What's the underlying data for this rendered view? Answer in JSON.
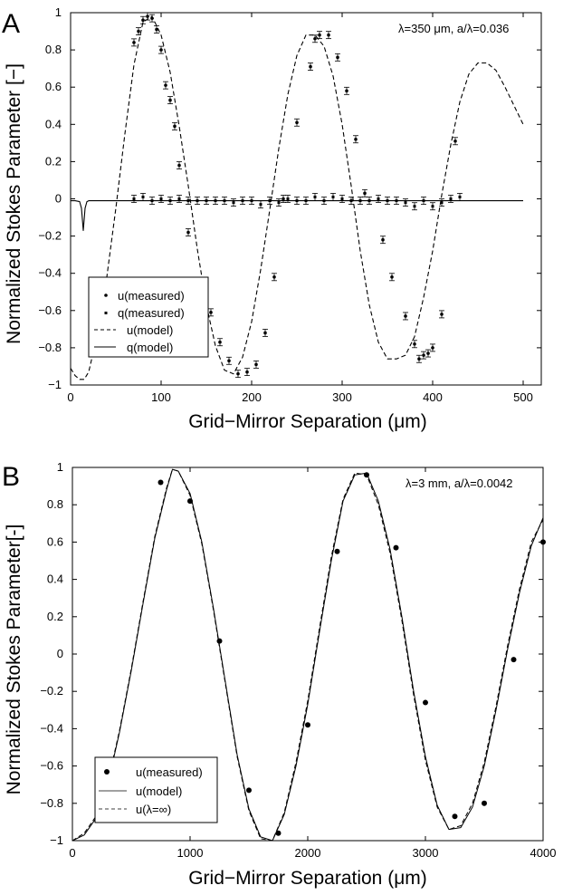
{
  "chart_data": [
    {
      "panel_label": "A",
      "type": "line",
      "title": "",
      "annotation": "λ=350 μm, a/λ=0.036",
      "xlabel": "Grid−Mirror Separation (μm)",
      "ylabel": "Normalized Stokes Parameter [−]",
      "xlim": [
        0,
        520
      ],
      "ylim": [
        -1,
        1
      ],
      "xticks": [
        0,
        100,
        200,
        300,
        400,
        500
      ],
      "xtick_labels": [
        "0",
        "100",
        "200",
        "300",
        "400",
        "500"
      ],
      "yticks": [
        -1,
        -0.8,
        -0.6,
        -0.4,
        -0.2,
        0,
        0.2,
        0.4,
        0.6,
        0.8,
        1
      ],
      "ytick_labels": [
        "−1",
        "−0.8",
        "−0.6",
        "−0.4",
        "−0.2",
        "0",
        "0.2",
        "0.4",
        "0.6",
        "0.8",
        "1"
      ],
      "legend": [
        {
          "label": "u(measured)",
          "marker": "dot"
        },
        {
          "label": "q(measured)",
          "marker": "square"
        },
        {
          "label": "u(model)",
          "marker": "dashed"
        },
        {
          "label": "q(model)",
          "marker": "solid"
        }
      ],
      "series": [
        {
          "name": "u(model)",
          "style": "dashed",
          "x": [
            0,
            5,
            10,
            15,
            20,
            30,
            40,
            50,
            60,
            70,
            80,
            90,
            100,
            110,
            120,
            130,
            140,
            150,
            160,
            170,
            180,
            190,
            200,
            210,
            220,
            230,
            240,
            250,
            260,
            270,
            280,
            290,
            300,
            310,
            320,
            330,
            340,
            350,
            360,
            370,
            380,
            390,
            400,
            410,
            420,
            430,
            440,
            450,
            460,
            470,
            480,
            490,
            500
          ],
          "y": [
            -0.91,
            -0.95,
            -0.97,
            -0.97,
            -0.93,
            -0.72,
            -0.42,
            -0.05,
            0.35,
            0.72,
            0.95,
            0.98,
            0.88,
            0.68,
            0.39,
            0.07,
            -0.27,
            -0.57,
            -0.79,
            -0.92,
            -0.94,
            -0.85,
            -0.66,
            -0.38,
            -0.06,
            0.27,
            0.56,
            0.77,
            0.88,
            0.88,
            0.82,
            0.66,
            0.4,
            0.07,
            -0.28,
            -0.57,
            -0.77,
            -0.86,
            -0.86,
            -0.84,
            -0.74,
            -0.53,
            -0.28,
            0.02,
            0.29,
            0.52,
            0.67,
            0.73,
            0.73,
            0.69,
            0.6,
            0.5,
            0.4
          ]
        },
        {
          "name": "q(model)",
          "style": "solid",
          "x": [
            0,
            5,
            10,
            12,
            14,
            16,
            18,
            20,
            30,
            60,
            100,
            150,
            200,
            250,
            300,
            350,
            400,
            450,
            500
          ],
          "y": [
            -0.01,
            -0.01,
            -0.015,
            -0.05,
            -0.17,
            -0.05,
            -0.015,
            -0.01,
            -0.01,
            -0.01,
            -0.01,
            -0.01,
            -0.01,
            -0.01,
            -0.01,
            -0.01,
            -0.01,
            -0.01,
            -0.01
          ]
        },
        {
          "name": "u(measured)",
          "style": "points",
          "x": [
            70,
            75,
            80,
            85,
            90,
            95,
            100,
            105,
            110,
            115,
            120,
            130,
            145,
            155,
            165,
            175,
            185,
            195,
            205,
            215,
            225,
            235,
            250,
            265,
            270,
            275,
            285,
            295,
            305,
            315,
            325,
            345,
            355,
            370,
            380,
            385,
            390,
            395,
            400,
            410,
            425
          ],
          "y": [
            0.84,
            0.9,
            0.96,
            0.98,
            0.97,
            0.91,
            0.8,
            0.61,
            0.53,
            0.39,
            0.18,
            -0.18,
            -0.44,
            -0.61,
            -0.77,
            -0.87,
            -0.94,
            -0.93,
            -0.89,
            -0.72,
            -0.42,
            0.0,
            0.41,
            0.71,
            0.86,
            0.88,
            0.88,
            0.76,
            0.58,
            0.32,
            0.03,
            -0.22,
            -0.42,
            -0.63,
            -0.78,
            -0.86,
            -0.84,
            -0.83,
            -0.8,
            -0.62,
            0.31
          ]
        },
        {
          "name": "q(measured)",
          "style": "points",
          "x": [
            70,
            80,
            90,
            100,
            110,
            120,
            130,
            140,
            150,
            160,
            170,
            180,
            190,
            200,
            210,
            220,
            230,
            240,
            250,
            260,
            270,
            280,
            290,
            300,
            310,
            320,
            330,
            340,
            350,
            360,
            370,
            380,
            390,
            400,
            410,
            420,
            430
          ],
          "y": [
            0.0,
            0.01,
            -0.01,
            0.0,
            -0.01,
            0.0,
            -0.01,
            -0.01,
            -0.01,
            -0.01,
            -0.01,
            -0.02,
            -0.01,
            -0.01,
            -0.03,
            -0.01,
            -0.02,
            0.0,
            -0.01,
            -0.01,
            0.01,
            -0.01,
            0.01,
            0.0,
            -0.01,
            -0.01,
            -0.01,
            0.0,
            -0.01,
            -0.01,
            -0.02,
            -0.04,
            -0.01,
            -0.04,
            -0.02,
            0.0,
            0.01
          ]
        }
      ]
    },
    {
      "panel_label": "B",
      "type": "line",
      "title": "",
      "annotation": "λ=3 mm, a/λ=0.0042",
      "xlabel": "Grid−Mirror Separation (μm)",
      "ylabel": "Normalized Stokes Parameter[-]",
      "xlim": [
        0,
        4000
      ],
      "ylim": [
        -1,
        1
      ],
      "xticks": [
        0,
        1000,
        2000,
        3000,
        4000
      ],
      "xtick_labels": [
        "0",
        "1000",
        "2000",
        "3000",
        "4000"
      ],
      "yticks": [
        -1,
        -0.8,
        -0.6,
        -0.4,
        -0.2,
        0,
        0.2,
        0.4,
        0.6,
        0.8,
        1
      ],
      "ytick_labels": [
        "−1",
        "−0.8",
        "−0.6",
        "−0.4",
        "−0.2",
        "0",
        "0.2",
        "0.4",
        "0.6",
        "0.8",
        "1"
      ],
      "legend": [
        {
          "label": "u(measured)",
          "marker": "dot"
        },
        {
          "label": "u(model)",
          "marker": "solid"
        },
        {
          "label": "u(λ=∞)",
          "marker": "dashed"
        }
      ],
      "series": [
        {
          "name": "u(model)",
          "style": "solid",
          "x": [
            0,
            100,
            200,
            300,
            400,
            500,
            600,
            700,
            800,
            850,
            900,
            1000,
            1100,
            1200,
            1300,
            1400,
            1500,
            1600,
            1700,
            1800,
            1900,
            2000,
            2100,
            2200,
            2300,
            2400,
            2500,
            2600,
            2700,
            2800,
            2900,
            3000,
            3100,
            3200,
            3300,
            3400,
            3500,
            3600,
            3700,
            3800,
            3900,
            4000
          ],
          "y": [
            -1.0,
            -0.97,
            -0.88,
            -0.7,
            -0.42,
            -0.09,
            0.27,
            0.62,
            0.88,
            0.99,
            0.98,
            0.86,
            0.6,
            0.24,
            -0.15,
            -0.54,
            -0.83,
            -0.98,
            -1.0,
            -0.86,
            -0.6,
            -0.27,
            0.12,
            0.5,
            0.82,
            0.96,
            0.97,
            0.82,
            0.56,
            0.2,
            -0.2,
            -0.55,
            -0.81,
            -0.94,
            -0.93,
            -0.82,
            -0.6,
            -0.3,
            0.03,
            0.33,
            0.58,
            0.73
          ]
        },
        {
          "name": "u(λ=∞)",
          "style": "dashed",
          "x": [
            0,
            100,
            200,
            300,
            400,
            500,
            600,
            700,
            800,
            850,
            900,
            1000,
            1100,
            1200,
            1300,
            1400,
            1500,
            1600,
            1700,
            1800,
            1900,
            2000,
            2100,
            2200,
            2300,
            2400,
            2500,
            2600,
            2700,
            2800,
            2900,
            3000,
            3100,
            3200,
            3300,
            3400,
            3500,
            3600,
            3700,
            3800,
            3900,
            4000
          ],
          "y": [
            -1.0,
            -0.96,
            -0.87,
            -0.69,
            -0.41,
            -0.08,
            0.28,
            0.63,
            0.89,
            0.99,
            0.98,
            0.85,
            0.59,
            0.23,
            -0.16,
            -0.55,
            -0.84,
            -0.99,
            -1.0,
            -0.85,
            -0.58,
            -0.25,
            0.14,
            0.52,
            0.83,
            0.97,
            0.96,
            0.8,
            0.54,
            0.18,
            -0.22,
            -0.57,
            -0.82,
            -0.94,
            -0.92,
            -0.8,
            -0.58,
            -0.28,
            0.05,
            0.35,
            0.6,
            0.72
          ]
        },
        {
          "name": "u(measured)",
          "style": "points",
          "x": [
            750,
            1000,
            1250,
            1500,
            1750,
            2000,
            2250,
            2500,
            2750,
            3000,
            3250,
            3500,
            3750,
            4000
          ],
          "y": [
            0.92,
            0.82,
            0.07,
            -0.73,
            -0.96,
            -0.38,
            0.55,
            0.96,
            0.57,
            -0.26,
            -0.87,
            -0.8,
            -0.03,
            0.6
          ]
        }
      ]
    }
  ]
}
